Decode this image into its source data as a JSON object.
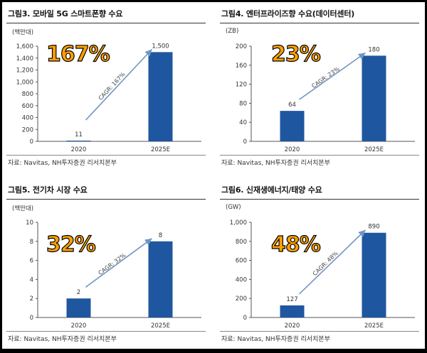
{
  "panels": [
    {
      "title": "그림3. 모바일 5G 스마트폰향 수요",
      "unit": "(백만대)",
      "source": "자료: Navitas, NH투자증권 리서치본부",
      "overlay": "167%",
      "cagr": "CAGR: 167%",
      "yticks": [
        "0",
        "200",
        "400",
        "600",
        "800",
        "1,000",
        "1,200",
        "1,400",
        "1,600"
      ],
      "value_labels": [
        "11",
        "1,500"
      ]
    },
    {
      "title": "그림4. 엔터프라이즈향 수요(데이터센터)",
      "unit": "(ZB)",
      "source": "자료: Navitas, NH투자증권 리서치본부",
      "overlay": "23%",
      "cagr": "CAGR: 23%",
      "yticks": [
        "0",
        "40",
        "80",
        "120",
        "160",
        "200"
      ],
      "value_labels": [
        "64",
        "180"
      ]
    },
    {
      "title": "그림5. 전기차 시장 수요",
      "unit": "(백만대)",
      "source": "자료: Navitas, NH투자증권 리서치본부",
      "overlay": "32%",
      "cagr": "CAGR: 32%",
      "yticks": [
        "0",
        "2",
        "4",
        "6",
        "8",
        "10"
      ],
      "value_labels": [
        "2",
        "8"
      ]
    },
    {
      "title": "그림6. 신재생에너지/태양 수요",
      "unit": "(GW)",
      "source": "자료: Navitas, NH투자증권 리서치본부",
      "overlay": "48%",
      "cagr": "CAGR: 48%",
      "yticks": [
        "0",
        "200",
        "400",
        "600",
        "800",
        "1,000"
      ],
      "value_labels": [
        "127",
        "890"
      ]
    }
  ],
  "chart_data": [
    {
      "type": "bar",
      "title": "그림3. 모바일 5G 스마트폰향 수요",
      "ylabel": "(백만대)",
      "categories": [
        "2020",
        "2025E"
      ],
      "values": [
        11,
        1500
      ],
      "ylim": [
        0,
        1600
      ],
      "annotation": "CAGR: 167%",
      "color": "#1f56a0"
    },
    {
      "type": "bar",
      "title": "그림4. 엔터프라이즈향 수요(데이터센터)",
      "ylabel": "(ZB)",
      "categories": [
        "2020",
        "2025E"
      ],
      "values": [
        64,
        180
      ],
      "ylim": [
        0,
        200
      ],
      "annotation": "CAGR: 23%",
      "color": "#1f56a0"
    },
    {
      "type": "bar",
      "title": "그림5. 전기차 시장 수요",
      "ylabel": "(백만대)",
      "categories": [
        "2020",
        "2025E"
      ],
      "values": [
        2,
        8
      ],
      "ylim": [
        0,
        10
      ],
      "annotation": "CAGR: 32%",
      "color": "#1f56a0"
    },
    {
      "type": "bar",
      "title": "그림6. 신재생에너지/태양 수요",
      "ylabel": "(GW)",
      "categories": [
        "2020",
        "2025E"
      ],
      "values": [
        127,
        890
      ],
      "ylim": [
        0,
        1000
      ],
      "annotation": "CAGR: 48%",
      "color": "#1f56a0"
    }
  ]
}
